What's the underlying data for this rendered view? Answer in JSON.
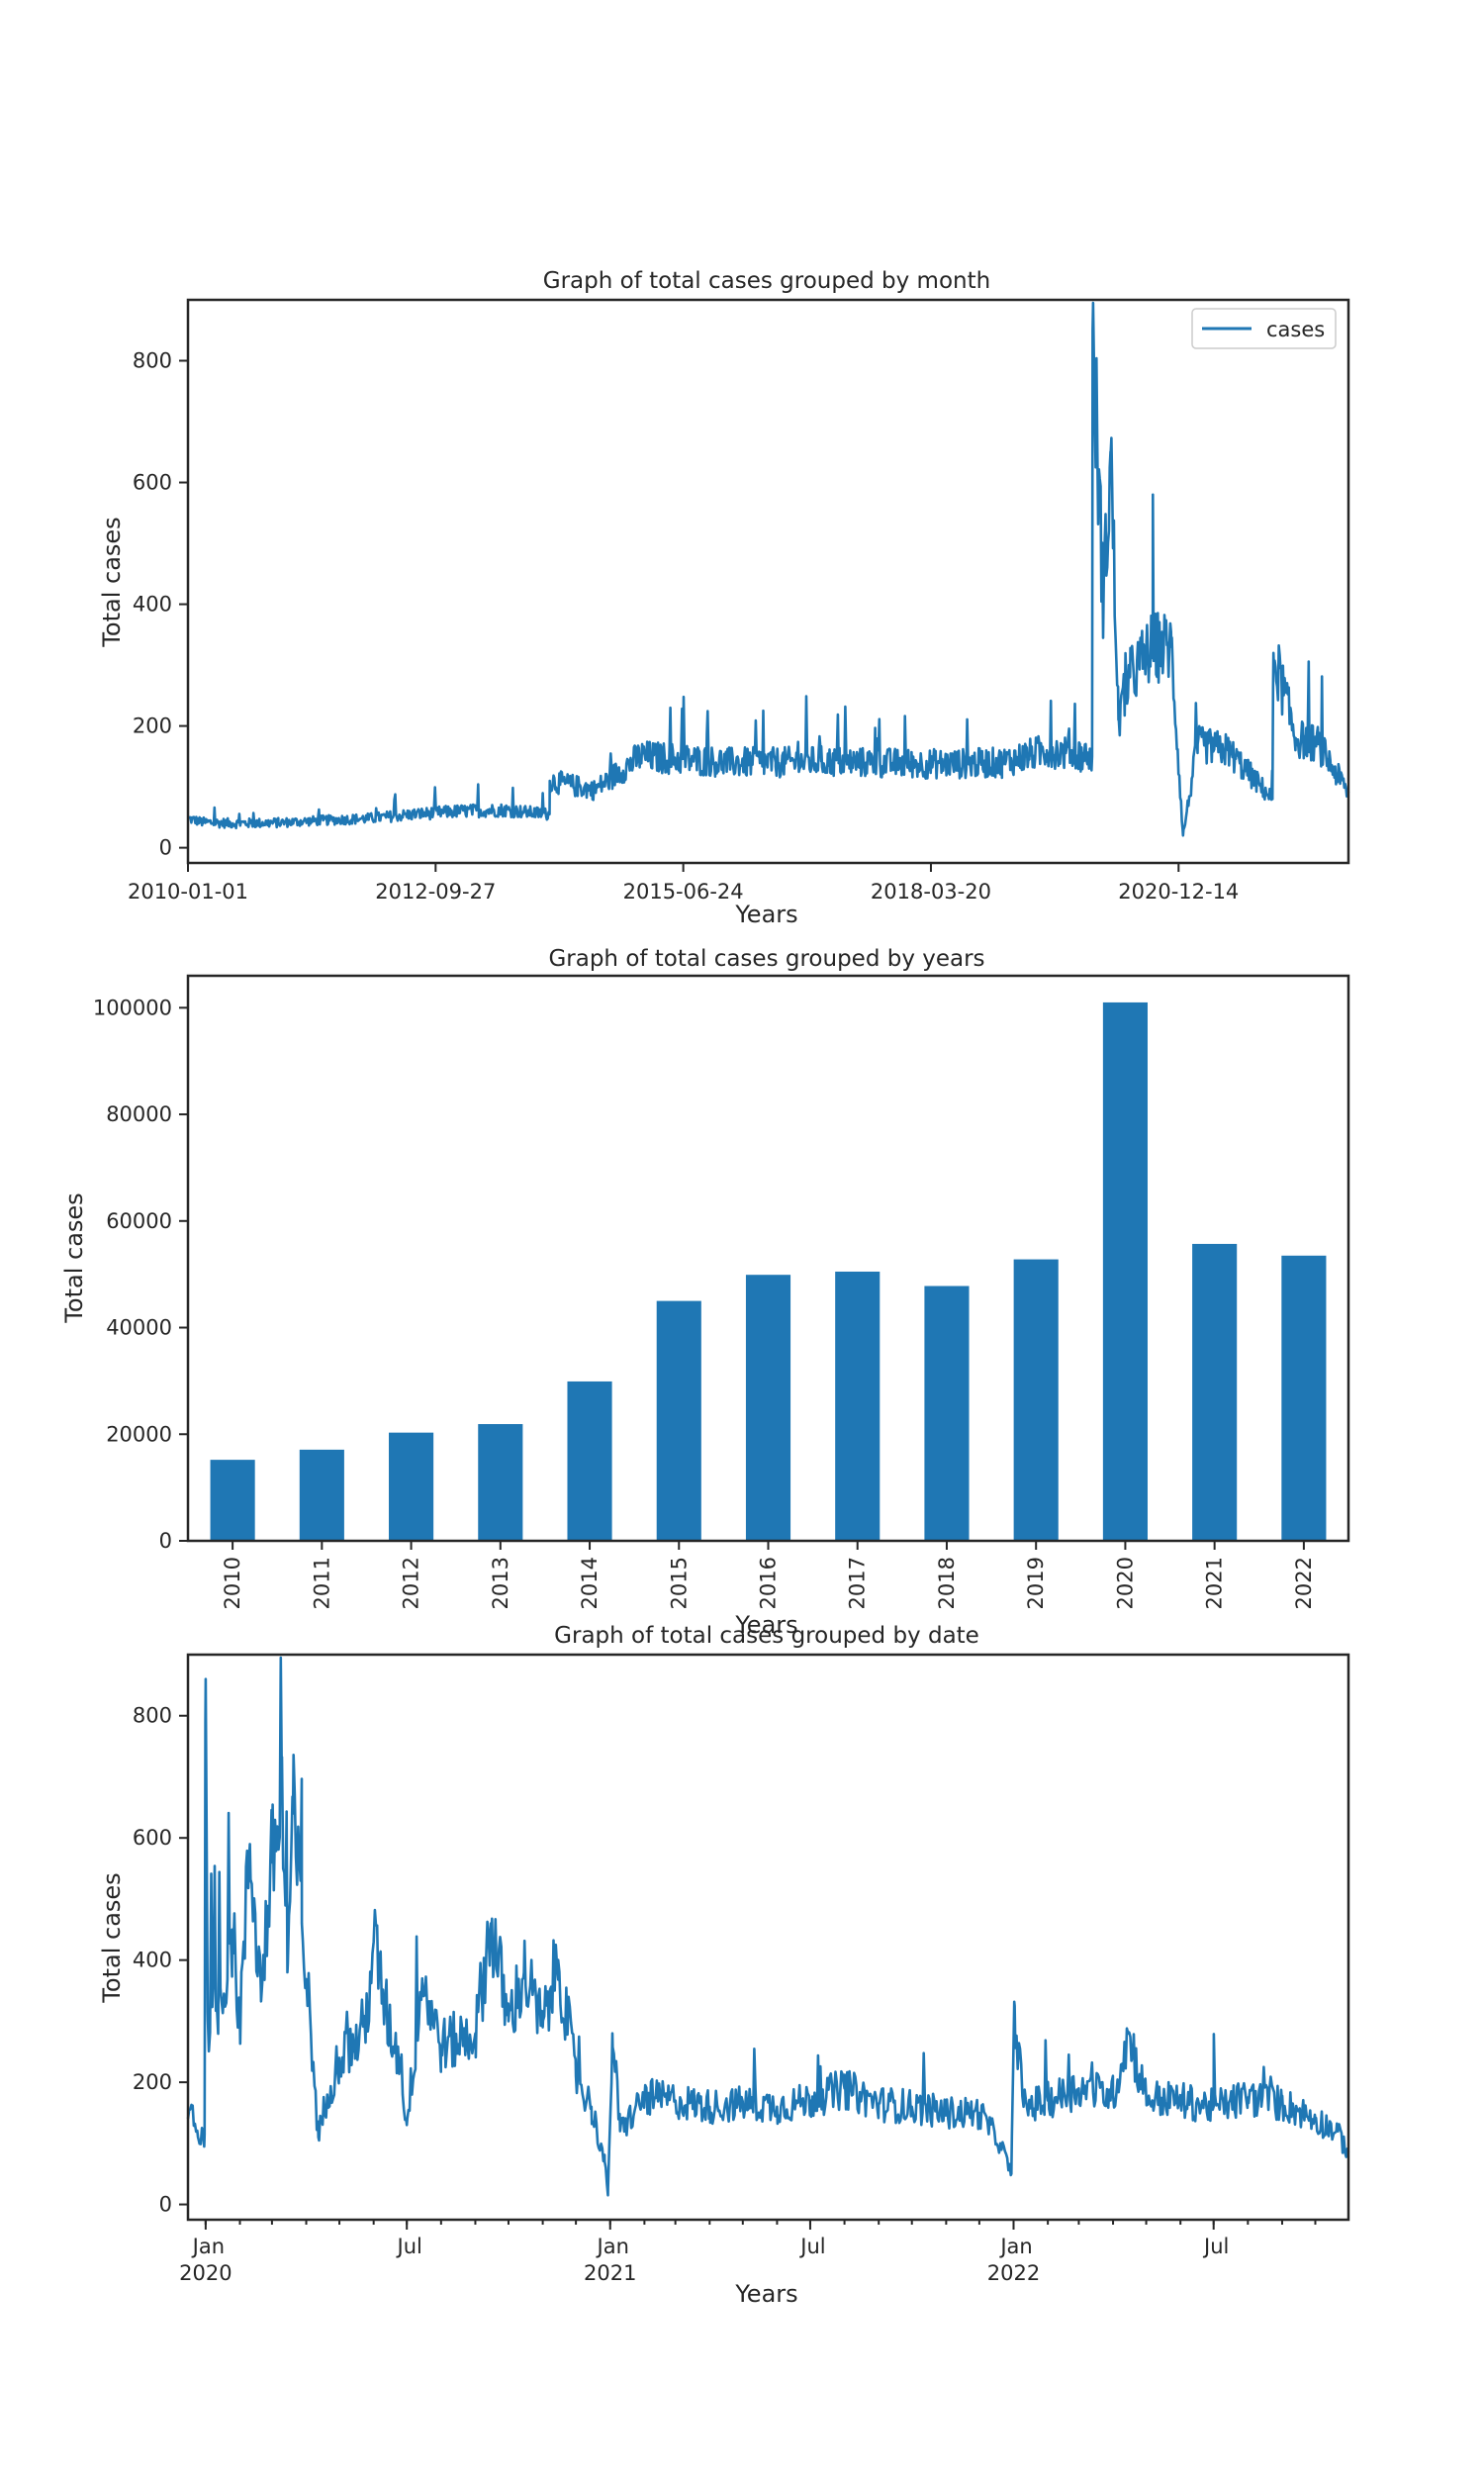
{
  "colors": {
    "series": "#1f77b4",
    "axes": "#262626",
    "background": "#ffffff"
  },
  "chart_data": [
    {
      "type": "line",
      "title": "Graph of total cases grouped by month",
      "xlabel": "Years",
      "ylabel": "Total cases",
      "legend": {
        "placement": "top-right",
        "entries": [
          "cases"
        ]
      },
      "grid": false,
      "x_range": [
        "2010-01-01",
        "2022-10-31"
      ],
      "ylim": [
        -25,
        900
      ],
      "y_ticks": [
        0,
        200,
        400,
        600,
        800
      ],
      "x_ticks": [
        "2010-01-01",
        "2012-09-27",
        "2015-06-24",
        "2018-03-20",
        "2020-12-14"
      ],
      "series": [
        {
          "name": "cases",
          "points": [
            [
              "2010-01-01",
              48
            ],
            [
              "2010-03-01",
              42
            ],
            [
              "2010-07-01",
              40
            ],
            [
              "2011-01-01",
              41
            ],
            [
              "2011-07-01",
              45
            ],
            [
              "2012-01-01",
              48
            ],
            [
              "2012-07-01",
              55
            ],
            [
              "2013-01-01",
              60
            ],
            [
              "2013-07-01",
              62
            ],
            [
              "2013-12-31",
              55
            ],
            [
              "2014-01-01",
              110
            ],
            [
              "2014-07-01",
              95
            ],
            [
              "2015-01-01",
              150
            ],
            [
              "2015-07-01",
              145
            ],
            [
              "2016-01-01",
              140
            ],
            [
              "2016-07-01",
              140
            ],
            [
              "2017-01-01",
              142
            ],
            [
              "2017-07-01",
              140
            ],
            [
              "2018-01-01",
              138
            ],
            [
              "2018-07-01",
              138
            ],
            [
              "2019-01-01",
              140
            ],
            [
              "2019-07-01",
              160
            ],
            [
              "2019-12-31",
              150
            ],
            [
              "2020-01-02",
              850
            ],
            [
              "2020-02-15",
              400
            ],
            [
              "2020-03-15",
              650
            ],
            [
              "2020-04-15",
              210
            ],
            [
              "2020-06-01",
              280
            ],
            [
              "2020-09-01",
              330
            ],
            [
              "2020-11-15",
              330
            ],
            [
              "2021-01-01",
              20
            ],
            [
              "2021-03-01",
              170
            ],
            [
              "2021-07-01",
              160
            ],
            [
              "2021-12-28",
              80
            ],
            [
              "2022-01-01",
              320
            ],
            [
              "2022-04-01",
              180
            ],
            [
              "2022-07-01",
              170
            ],
            [
              "2022-10-31",
              90
            ]
          ]
        }
      ]
    },
    {
      "type": "bar",
      "title": "Graph of total cases grouped by years",
      "xlabel": "Years",
      "ylabel": "Total cases",
      "grid": false,
      "ylim": [
        0,
        106000
      ],
      "y_ticks": [
        0,
        20000,
        40000,
        60000,
        80000,
        100000
      ],
      "categories": [
        "2010",
        "2011",
        "2012",
        "2013",
        "2014",
        "2015",
        "2016",
        "2017",
        "2018",
        "2019",
        "2020",
        "2021",
        "2022"
      ],
      "values": [
        15200,
        17100,
        20300,
        21900,
        29900,
        45000,
        49900,
        50500,
        47800,
        52800,
        101000,
        55700,
        53500
      ]
    },
    {
      "type": "line",
      "title": "Graph of total cases grouped by date",
      "xlabel": "Years",
      "ylabel": "Total cases",
      "grid": false,
      "x_range": [
        "2019-12-16",
        "2022-10-31"
      ],
      "ylim": [
        -25,
        900
      ],
      "y_ticks": [
        0,
        200,
        400,
        600,
        800
      ],
      "x_ticks": [
        {
          "date": "2020-01-01",
          "label": "Jan",
          "year": "2020"
        },
        {
          "date": "2020-07-01",
          "label": "Jul",
          "year": ""
        },
        {
          "date": "2021-01-01",
          "label": "Jan",
          "year": "2021"
        },
        {
          "date": "2021-07-01",
          "label": "Jul",
          "year": ""
        },
        {
          "date": "2022-01-01",
          "label": "Jan",
          "year": "2022"
        },
        {
          "date": "2022-07-01",
          "label": "Jul",
          "year": ""
        }
      ],
      "series": [
        {
          "name": "cases",
          "points": [
            [
              "2019-12-16",
              140
            ],
            [
              "2019-12-20",
              160
            ],
            [
              "2019-12-25",
              110
            ],
            [
              "2019-12-31",
              115
            ],
            [
              "2020-01-01",
              860
            ],
            [
              "2020-01-03",
              300
            ],
            [
              "2020-01-15",
              340
            ],
            [
              "2020-01-25",
              450
            ],
            [
              "2020-02-01",
              300
            ],
            [
              "2020-02-10",
              590
            ],
            [
              "2020-02-20",
              350
            ],
            [
              "2020-03-01",
              560
            ],
            [
              "2020-03-10",
              660
            ],
            [
              "2020-03-15",
              380
            ],
            [
              "2020-03-20",
              640
            ],
            [
              "2020-03-28",
              460
            ],
            [
              "2020-04-05",
              290
            ],
            [
              "2020-04-12",
              110
            ],
            [
              "2020-04-20",
              180
            ],
            [
              "2020-05-01",
              240
            ],
            [
              "2020-05-15",
              260
            ],
            [
              "2020-05-25",
              300
            ],
            [
              "2020-06-01",
              430
            ],
            [
              "2020-06-15",
              290
            ],
            [
              "2020-06-25",
              240
            ],
            [
              "2020-07-01",
              130
            ],
            [
              "2020-07-15",
              370
            ],
            [
              "2020-08-01",
              260
            ],
            [
              "2020-09-01",
              280
            ],
            [
              "2020-09-15",
              460
            ],
            [
              "2020-10-01",
              300
            ],
            [
              "2020-10-15",
              380
            ],
            [
              "2020-11-01",
              290
            ],
            [
              "2020-11-15",
              400
            ],
            [
              "2020-12-01",
              210
            ],
            [
              "2020-12-15",
              160
            ],
            [
              "2020-12-27",
              70
            ],
            [
              "2020-12-30",
              15
            ],
            [
              "2021-01-03",
              280
            ],
            [
              "2021-01-10",
              120
            ],
            [
              "2021-02-01",
              175
            ],
            [
              "2021-03-01",
              170
            ],
            [
              "2021-04-01",
              160
            ],
            [
              "2021-05-01",
              165
            ],
            [
              "2021-06-01",
              160
            ],
            [
              "2021-07-01",
              170
            ],
            [
              "2021-08-01",
              190
            ],
            [
              "2021-09-01",
              165
            ],
            [
              "2021-10-01",
              160
            ],
            [
              "2021-11-01",
              150
            ],
            [
              "2021-12-01",
              150
            ],
            [
              "2021-12-20",
              100
            ],
            [
              "2021-12-30",
              50
            ],
            [
              "2022-01-02",
              325
            ],
            [
              "2022-01-10",
              160
            ],
            [
              "2022-02-01",
              170
            ],
            [
              "2022-03-01",
              190
            ],
            [
              "2022-04-01",
              180
            ],
            [
              "2022-04-15",
              280
            ],
            [
              "2022-05-01",
              175
            ],
            [
              "2022-06-01",
              170
            ],
            [
              "2022-07-01",
              160
            ],
            [
              "2022-08-01",
              175
            ],
            [
              "2022-09-01",
              165
            ],
            [
              "2022-10-01",
              140
            ],
            [
              "2022-10-20",
              120
            ],
            [
              "2022-10-31",
              85
            ]
          ]
        }
      ]
    }
  ]
}
